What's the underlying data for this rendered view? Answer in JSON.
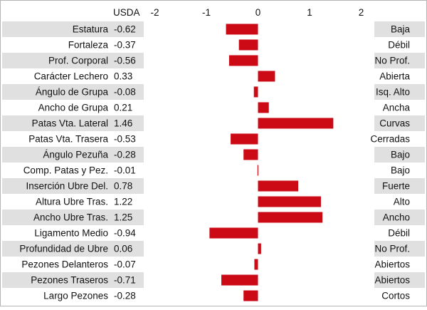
{
  "chart_data": {
    "type": "bar",
    "orientation": "horizontal",
    "value_header": "USDA",
    "x_ticks": [
      -2,
      -1,
      0,
      1,
      2
    ],
    "xlim": [
      -2.15,
      2.15
    ],
    "grid": false,
    "bar_color": "#cc0a15",
    "stripe_color": "#e0e0e0",
    "rows": [
      {
        "trait": "Estatura",
        "value_label": "-0.62",
        "value": -0.62,
        "right_label": "Baja"
      },
      {
        "trait": "Fortaleza",
        "value_label": "-0.37",
        "value": -0.37,
        "right_label": "Débil"
      },
      {
        "trait": "Prof. Corporal",
        "value_label": "-0.56",
        "value": -0.56,
        "right_label": "No Prof."
      },
      {
        "trait": "Carácter Lechero",
        "value_label": "0.33",
        "value": 0.33,
        "right_label": "Abierta"
      },
      {
        "trait": "Ángulo de Grupa",
        "value_label": "-0.08",
        "value": -0.08,
        "right_label": "Isq. Alto"
      },
      {
        "trait": "Ancho de Grupa",
        "value_label": "0.21",
        "value": 0.21,
        "right_label": "Ancha"
      },
      {
        "trait": "Patas Vta. Lateral",
        "value_label": "1.46",
        "value": 1.46,
        "right_label": "Curvas"
      },
      {
        "trait": "Patas Vta. Trasera",
        "value_label": "-0.53",
        "value": -0.53,
        "right_label": "Cerradas"
      },
      {
        "trait": "Ángulo Pezuña",
        "value_label": "-0.28",
        "value": -0.28,
        "right_label": "Bajo"
      },
      {
        "trait": "Comp. Patas y Pez.",
        "value_label": "-0.01",
        "value": -0.01,
        "right_label": "Bajo"
      },
      {
        "trait": "Inserción Ubre Del.",
        "value_label": "0.78",
        "value": 0.78,
        "right_label": "Fuerte"
      },
      {
        "trait": "Altura Ubre Tras.",
        "value_label": "1.22",
        "value": 1.22,
        "right_label": "Alto"
      },
      {
        "trait": "Ancho Ubre Tras.",
        "value_label": "1.25",
        "value": 1.25,
        "right_label": "Ancho"
      },
      {
        "trait": "Ligamento Medio",
        "value_label": "-0.94",
        "value": -0.94,
        "right_label": "Débil"
      },
      {
        "trait": "Profundidad de Ubre",
        "value_label": "0.06",
        "value": 0.06,
        "right_label": "No Prof."
      },
      {
        "trait": "Pezones Delanteros",
        "value_label": "-0.07",
        "value": -0.07,
        "right_label": "Abiertos"
      },
      {
        "trait": "Pezones Traseros",
        "value_label": "-0.71",
        "value": -0.71,
        "right_label": "Abiertos"
      },
      {
        "trait": "Largo Pezones",
        "value_label": "-0.28",
        "value": -0.28,
        "right_label": "Cortos"
      }
    ]
  }
}
